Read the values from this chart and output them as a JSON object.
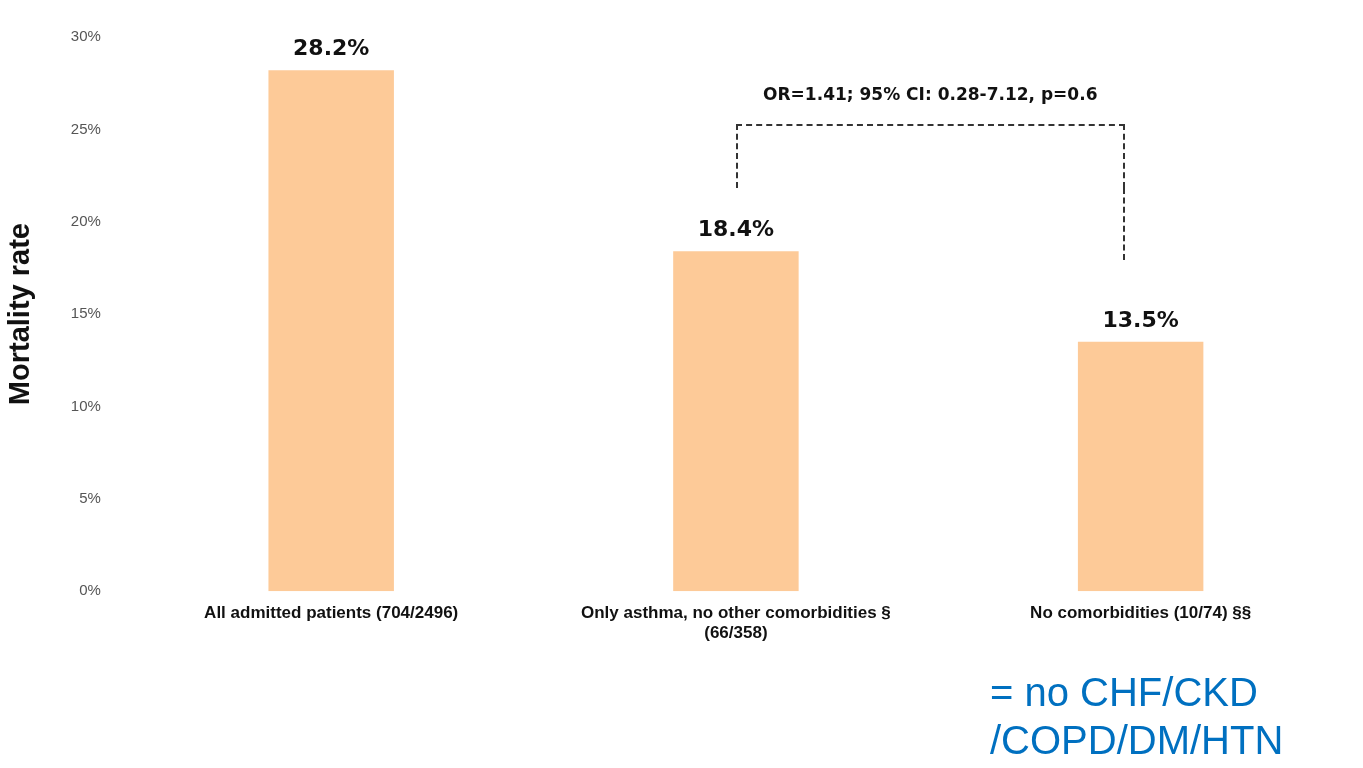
{
  "chart_data": {
    "type": "bar",
    "ylabel": "Mortality rate",
    "categories": [
      "All admitted patients (704/2496)",
      "Only asthma, no other comorbidities §\n(66/358)",
      "No comorbidities (10/74) §§"
    ],
    "values": [
      28.2,
      18.4,
      13.5
    ],
    "color": "#fdca98",
    "value_labels": [
      "28.2%",
      "18.4%",
      "13.5%"
    ],
    "ylim": [
      0,
      30
    ],
    "yticks": [
      {
        "value": 0,
        "label": "0%"
      },
      {
        "value": 5,
        "label": "5%"
      },
      {
        "value": 10,
        "label": "10%"
      },
      {
        "value": 15,
        "label": "15%"
      },
      {
        "value": 20,
        "label": "20%"
      },
      {
        "value": 25,
        "label": "25%"
      },
      {
        "value": 30,
        "label": "30%"
      }
    ],
    "grid": false,
    "legend": false,
    "annotations": [
      "OR=1.41; 95% CI: 0.28-7.12, p=0.6",
      "= no  CHF/CKD /COPD/DM/HTN"
    ]
  }
}
